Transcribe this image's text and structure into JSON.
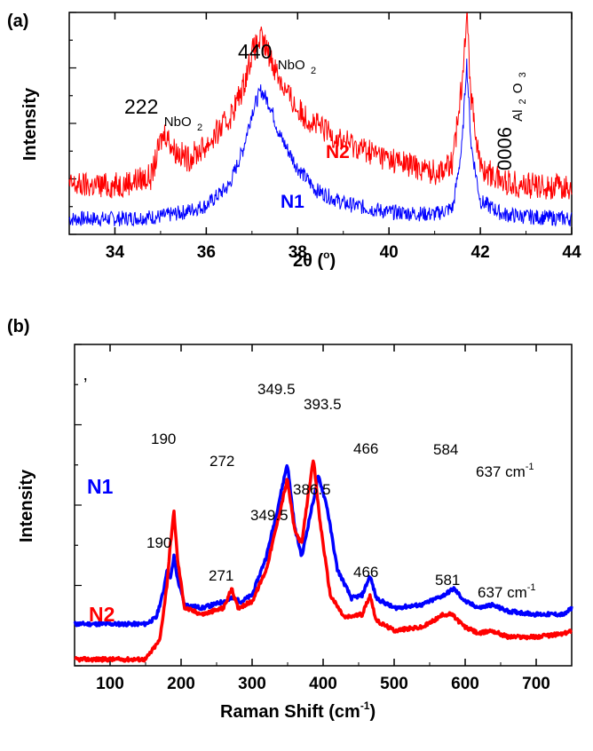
{
  "chart_data": [
    {
      "panel": "(a)",
      "type": "line",
      "xlabel_main": "2θ (",
      "xlabel_sup": "o",
      "xlabel_end": ")",
      "ylabel": "Intensity",
      "xlim": [
        33,
        44
      ],
      "ylim": [
        0,
        1
      ],
      "xticks": [
        34,
        36,
        38,
        40,
        42,
        44
      ],
      "series": [
        {
          "name": "N1",
          "color": "#0000ff",
          "x": [
            33,
            34,
            35,
            35.5,
            36,
            36.5,
            36.8,
            37.0,
            37.2,
            37.4,
            37.6,
            38.0,
            38.4,
            39,
            40,
            41,
            41.4,
            41.6,
            41.7,
            41.8,
            42.0,
            42.5,
            43,
            44
          ],
          "y": [
            0.07,
            0.07,
            0.08,
            0.1,
            0.13,
            0.22,
            0.38,
            0.55,
            0.65,
            0.58,
            0.45,
            0.3,
            0.2,
            0.14,
            0.1,
            0.09,
            0.12,
            0.4,
            0.78,
            0.4,
            0.15,
            0.09,
            0.08,
            0.07
          ]
        },
        {
          "name": "N2",
          "color": "#ff0000",
          "x": [
            33,
            34,
            34.8,
            35.0,
            35.1,
            35.3,
            35.6,
            36.0,
            36.5,
            36.8,
            37.0,
            37.2,
            37.4,
            37.7,
            38.0,
            38.5,
            39,
            40,
            41,
            41.4,
            41.6,
            41.7,
            41.8,
            42.0,
            42.5,
            43,
            44
          ],
          "y": [
            0.22,
            0.22,
            0.26,
            0.42,
            0.46,
            0.38,
            0.34,
            0.4,
            0.52,
            0.66,
            0.82,
            0.88,
            0.8,
            0.66,
            0.56,
            0.48,
            0.42,
            0.34,
            0.28,
            0.32,
            0.7,
            1.0,
            0.62,
            0.3,
            0.24,
            0.22,
            0.21
          ]
        }
      ],
      "annotations": [
        {
          "main": "222",
          "sub": "NbO",
          "subsub": "2"
        },
        {
          "main": "440",
          "sub": "NbO",
          "subsub": "2"
        },
        {
          "main": "0006",
          "sub": "Al",
          "subsub": "2",
          "sub2": "O",
          "subsub2": "3"
        }
      ]
    },
    {
      "panel": "(b)",
      "type": "line",
      "xlabel_main": "Raman Shift (cm",
      "xlabel_sup": "-1",
      "xlabel_end": ")",
      "ylabel": "Intensity",
      "xlim": [
        50,
        750
      ],
      "ylim": [
        0,
        1
      ],
      "xticks": [
        100,
        200,
        300,
        400,
        500,
        600,
        700
      ],
      "stray_mark": "’",
      "series": [
        {
          "name": "N1",
          "color": "#0000ff",
          "x": [
            50,
            150,
            165,
            175,
            180,
            185,
            190,
            195,
            205,
            230,
            260,
            272,
            285,
            300,
            320,
            335,
            349.5,
            360,
            370,
            380,
            393.5,
            405,
            420,
            440,
            455,
            466,
            475,
            500,
            540,
            570,
            584,
            600,
            620,
            637,
            660,
            700,
            740,
            750
          ],
          "y": [
            0.13,
            0.13,
            0.15,
            0.23,
            0.3,
            0.27,
            0.34,
            0.27,
            0.19,
            0.18,
            0.2,
            0.21,
            0.2,
            0.22,
            0.34,
            0.48,
            0.63,
            0.43,
            0.34,
            0.45,
            0.59,
            0.5,
            0.3,
            0.21,
            0.22,
            0.28,
            0.21,
            0.18,
            0.19,
            0.22,
            0.24,
            0.2,
            0.18,
            0.19,
            0.17,
            0.16,
            0.16,
            0.18
          ]
        },
        {
          "name": "N2",
          "color": "#ff0000",
          "x": [
            50,
            150,
            170,
            180,
            185,
            190,
            195,
            205,
            230,
            260,
            271,
            280,
            300,
            320,
            335,
            349.5,
            360,
            370,
            380,
            386.5,
            395,
            410,
            430,
            455,
            466,
            475,
            500,
            540,
            570,
            581,
            600,
            620,
            637,
            660,
            700,
            740,
            750
          ],
          "y": [
            0.02,
            0.02,
            0.08,
            0.25,
            0.38,
            0.48,
            0.33,
            0.18,
            0.16,
            0.18,
            0.24,
            0.18,
            0.2,
            0.3,
            0.44,
            0.58,
            0.42,
            0.38,
            0.55,
            0.64,
            0.46,
            0.22,
            0.15,
            0.16,
            0.22,
            0.14,
            0.11,
            0.12,
            0.16,
            0.16,
            0.12,
            0.1,
            0.11,
            0.09,
            0.09,
            0.1,
            0.11
          ]
        }
      ],
      "annotations": [
        {
          "text": "190"
        },
        {
          "text": "272"
        },
        {
          "text": "349.5"
        },
        {
          "text": "393.5"
        },
        {
          "text": "466"
        },
        {
          "text": "584"
        },
        {
          "text": "637 cm",
          "sup": "-1"
        },
        {
          "text": "190"
        },
        {
          "text": "271"
        },
        {
          "text": "349.5"
        },
        {
          "text": "386.5"
        },
        {
          "text": "466"
        },
        {
          "text": "581"
        },
        {
          "text": "637 cm",
          "sup": "-1"
        }
      ]
    }
  ]
}
